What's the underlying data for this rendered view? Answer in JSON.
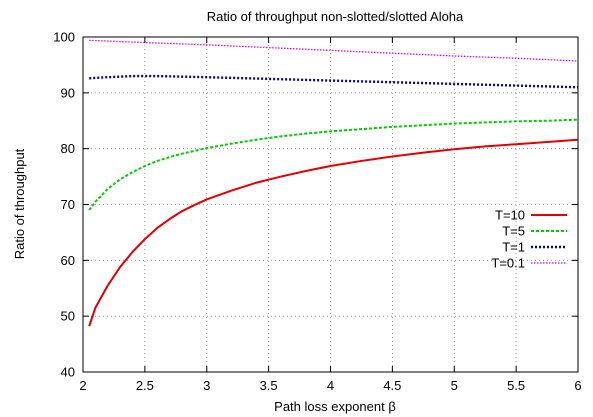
{
  "chart_data": {
    "type": "line",
    "title": "Ratio of throughput non-slotted/slotted Aloha",
    "xlabel": "Path loss exponent β",
    "ylabel": "Ratio of throughput",
    "xlim": [
      2,
      6
    ],
    "ylim": [
      40,
      100
    ],
    "xticks": [
      2,
      2.5,
      3,
      3.5,
      4,
      4.5,
      5,
      5.5,
      6
    ],
    "xtick_labels": [
      "2",
      "2.5",
      "3",
      "3.5",
      "4",
      "4.5",
      "5",
      "5.5",
      "6"
    ],
    "yticks": [
      40,
      50,
      60,
      70,
      80,
      90,
      100
    ],
    "ytick_labels": [
      "40",
      "50",
      "60",
      "70",
      "80",
      "90",
      "100"
    ],
    "grid": true,
    "legend_position": "right",
    "series": [
      {
        "name": "T=10",
        "color": "#e00000",
        "style": "solid",
        "x": [
          2.05,
          2.1,
          2.2,
          2.3,
          2.4,
          2.5,
          2.6,
          2.7,
          2.8,
          2.9,
          3.0,
          3.2,
          3.4,
          3.6,
          3.8,
          4.0,
          4.25,
          4.5,
          4.75,
          5.0,
          5.25,
          5.5,
          5.75,
          6.0
        ],
        "values": [
          48.2,
          51.5,
          55.5,
          58.8,
          61.5,
          63.8,
          65.8,
          67.4,
          68.8,
          69.9,
          70.9,
          72.5,
          73.9,
          75.0,
          76.0,
          76.9,
          77.8,
          78.6,
          79.3,
          79.9,
          80.4,
          80.8,
          81.2,
          81.6
        ]
      },
      {
        "name": "T=5",
        "color": "#00cc00",
        "style": "dashed",
        "x": [
          2.05,
          2.1,
          2.2,
          2.3,
          2.4,
          2.5,
          2.6,
          2.7,
          2.8,
          2.9,
          3.0,
          3.2,
          3.4,
          3.6,
          3.8,
          4.0,
          4.25,
          4.5,
          4.75,
          5.0,
          5.25,
          5.5,
          5.75,
          6.0
        ],
        "values": [
          69.0,
          70.5,
          72.8,
          74.5,
          75.8,
          76.9,
          77.8,
          78.5,
          79.1,
          79.6,
          80.1,
          80.9,
          81.6,
          82.2,
          82.7,
          83.1,
          83.5,
          83.9,
          84.2,
          84.5,
          84.7,
          84.9,
          85.0,
          85.2
        ]
      },
      {
        "name": "T=1",
        "color": "#0000cc",
        "style": "dotted",
        "x": [
          2.05,
          2.2,
          2.4,
          2.6,
          2.8,
          3.0,
          3.5,
          4.0,
          4.5,
          5.0,
          5.5,
          6.0
        ],
        "values": [
          92.6,
          92.8,
          93.0,
          93.0,
          92.9,
          92.8,
          92.5,
          92.2,
          91.9,
          91.6,
          91.3,
          91.0
        ]
      },
      {
        "name": "T=0.1",
        "color": "#ff00ff",
        "style": "dotted-fine",
        "x": [
          2.05,
          2.5,
          3.0,
          3.5,
          4.0,
          4.5,
          5.0,
          5.5,
          6.0
        ],
        "values": [
          99.4,
          99.0,
          98.6,
          98.1,
          97.6,
          97.1,
          96.6,
          96.2,
          95.7
        ]
      }
    ]
  }
}
